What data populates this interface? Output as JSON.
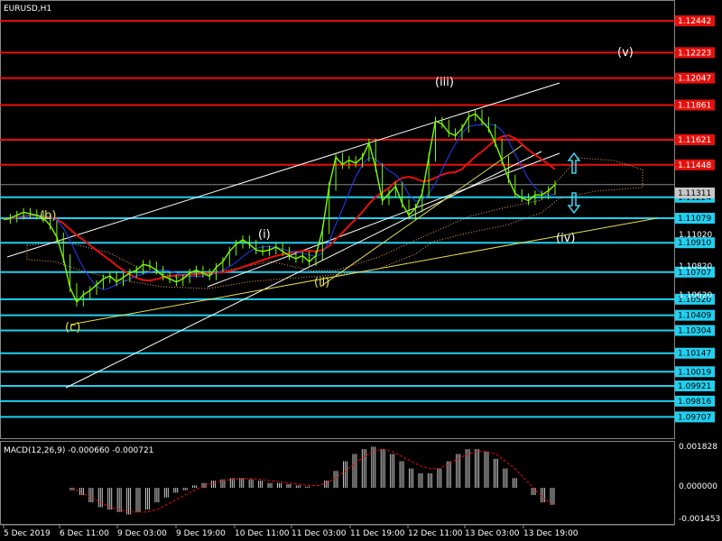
{
  "chart_data": {
    "type": "line",
    "title": "EURUSD,H1",
    "main_scale": {
      "ylim": [
        1.0956,
        1.1258
      ]
    },
    "price_levels": {
      "resistance": [
        1.12442,
        1.12223,
        1.12047,
        1.11861,
        1.11621,
        1.11448
      ],
      "support": [
        1.11224,
        1.11079,
        1.1091,
        1.10707,
        1.1052,
        1.10409,
        1.10304,
        1.10147,
        1.10019,
        1.09921,
        1.09816,
        1.09707
      ]
    },
    "current_price": "1.11311",
    "axis_ticks": [
      "1.11020",
      "1.10820",
      "1.10620"
    ],
    "x_tick_labels": [
      "5 Dec 2019",
      "6 Dec 11:00",
      "9 Dec 03:00",
      "9 Dec 19:00",
      "10 Dec 11:00",
      "11 Dec 03:00",
      "11 Dec 19:00",
      "12 Dec 11:00",
      "13 Dec 03:00",
      "13 Dec 19:00"
    ],
    "wave_labels": {
      "b": "(b)",
      "c": "(c)",
      "i": "(i)",
      "ii": "(ii)",
      "iii": "(iii)",
      "iv": "(iv)",
      "v": "(v)"
    },
    "price_series": [
      1.1107,
      1.1108,
      1.111,
      1.1112,
      1.1111,
      1.111,
      1.1108,
      1.1103,
      1.1095,
      1.108,
      1.106,
      1.105,
      1.1055,
      1.1058,
      1.1062,
      1.1066,
      1.1068,
      1.1064,
      1.1067,
      1.107,
      1.1072,
      1.1076,
      1.1075,
      1.1072,
      1.1068,
      1.1066,
      1.1064,
      1.1066,
      1.107,
      1.1072,
      1.107,
      1.1068,
      1.1074,
      1.1078,
      1.1085,
      1.109,
      1.1093,
      1.109,
      1.1086,
      1.1085,
      1.1086,
      1.1088,
      1.1085,
      1.1082,
      1.108,
      1.1082,
      1.1078,
      1.1082,
      1.11,
      1.113,
      1.115,
      1.1145,
      1.1148,
      1.1146,
      1.115,
      1.116,
      1.1143,
      1.112,
      1.1125,
      1.113,
      1.1118,
      1.111,
      1.1115,
      1.1125,
      1.115,
      1.1175,
      1.1173,
      1.1167,
      1.1165,
      1.117,
      1.1178,
      1.118,
      1.1175,
      1.117,
      1.116,
      1.1148,
      1.1135,
      1.1125,
      1.1122,
      1.112,
      1.1124,
      1.1124,
      1.1127,
      1.1131
    ],
    "macd": {
      "label": "MACD(12,26,9) -0.000660 -0.000721",
      "ylim": [
        -0.001453,
        0.001828
      ],
      "ticks": [
        "0.001828",
        "0.000000",
        "-0.001453"
      ],
      "histogram": [
        -0.0001,
        -0.0003,
        -0.0006,
        -0.0008,
        -0.0009,
        -0.001,
        -0.0011,
        -0.001,
        -0.0009,
        -0.0006,
        -0.0004,
        -0.0002,
        -0.0001,
        0.0001,
        0.0002,
        0.0003,
        0.00035,
        0.0004,
        0.0004,
        0.00035,
        0.0003,
        0.0002,
        0.0002,
        0.00015,
        0.0001,
        5e-05,
        0.0,
        0.0003,
        0.0007,
        0.0011,
        0.0014,
        0.0016,
        0.0017,
        0.0016,
        0.0014,
        0.0011,
        0.0008,
        0.0006,
        0.0006,
        0.0008,
        0.0011,
        0.0014,
        0.0016,
        0.0016,
        0.0015,
        0.0012,
        0.0008,
        0.0004,
        0.0,
        -0.0003,
        -0.0006,
        -0.0007
      ],
      "signal": [
        0.0,
        -0.0002,
        -0.0004,
        -0.0006,
        -0.0008,
        -0.0009,
        -0.001,
        -0.001,
        -0.001,
        -0.0009,
        -0.0007,
        -0.0005,
        -0.0003,
        -0.0001,
        0.0001,
        0.0002,
        0.0003,
        0.00035,
        0.00038,
        0.00038,
        0.00035,
        0.0003,
        0.00025,
        0.0002,
        0.00015,
        0.0001,
        8e-05,
        0.0002,
        0.0004,
        0.0007,
        0.001,
        0.0013,
        0.0015,
        0.0016,
        0.0015,
        0.0013,
        0.0011,
        0.0009,
        0.0008,
        0.0008,
        0.001,
        0.0012,
        0.0014,
        0.0015,
        0.0015,
        0.0014,
        0.0011,
        0.0008,
        0.0004,
        0.0,
        -0.0004,
        -0.0007
      ]
    },
    "colors": {
      "resistance": "#e8100c",
      "support": "#20d0f0",
      "price": "#7cfc00",
      "ma": "#e8100c",
      "ma_fast": "#2040ff",
      "trendline": "#ffffff",
      "yellow": "#e8e050",
      "cloud": "#f4a460"
    }
  }
}
